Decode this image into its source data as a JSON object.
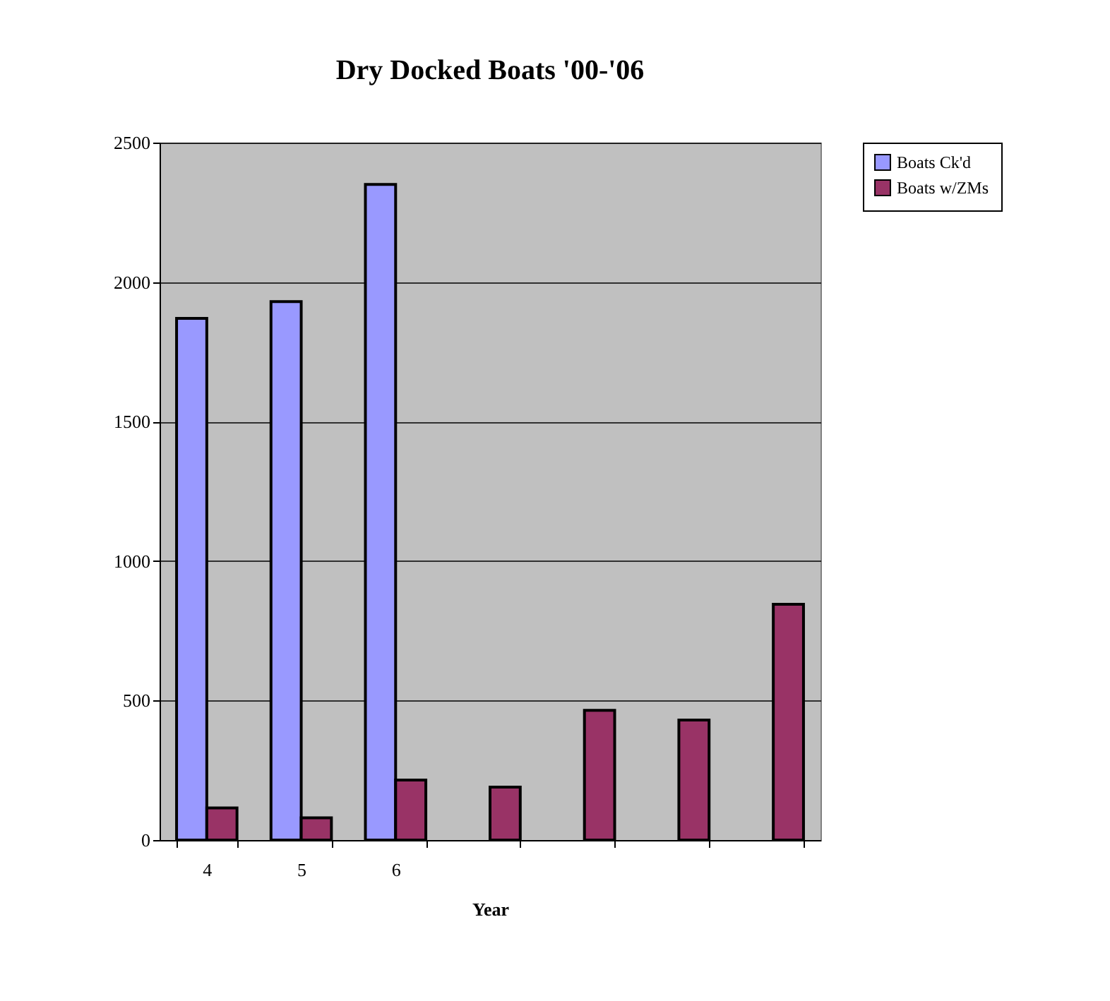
{
  "chart_data": {
    "type": "bar",
    "title": "Dry Docked Boats '00-'06",
    "xlabel": "Year",
    "categories": [
      "4",
      "5",
      "6",
      null,
      null,
      null,
      null
    ],
    "series": [
      {
        "name": "Boats Ck'd",
        "color": "#9999ff",
        "values": [
          1870,
          1930,
          2350,
          null,
          null,
          null,
          null
        ]
      },
      {
        "name": "Boats w/ZMs",
        "color": "#993366",
        "values": [
          115,
          80,
          215,
          190,
          465,
          430,
          845
        ]
      }
    ],
    "ylim": [
      0,
      2500
    ],
    "yticks": [
      0,
      500,
      1000,
      1500,
      2000,
      2500
    ],
    "grid": "y",
    "legend": "right"
  }
}
